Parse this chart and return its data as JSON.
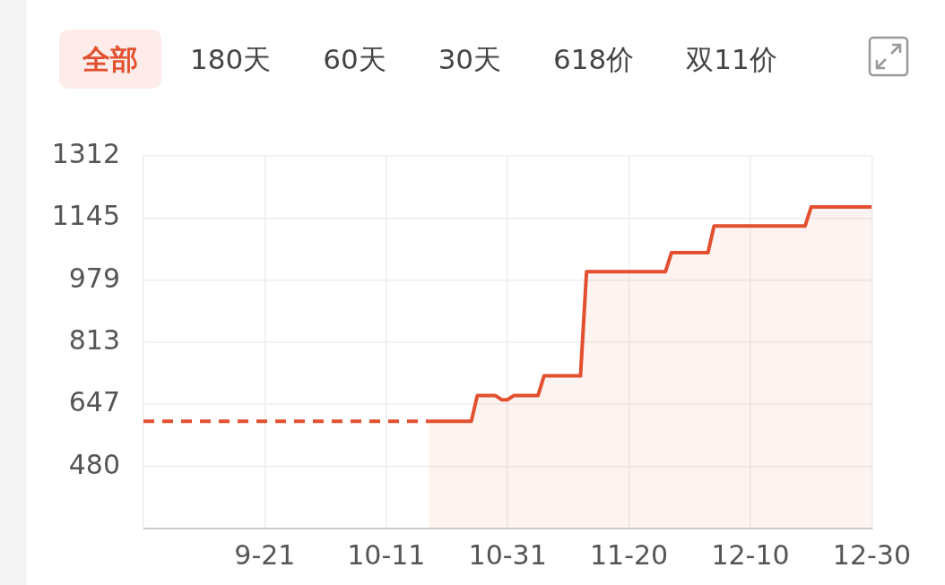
{
  "chart_data": {
    "type": "line",
    "annotations": [
      "全部",
      "180天",
      "60天",
      "30天",
      "618价",
      "双11价"
    ],
    "xlim": [
      "--09-01",
      "--12-30"
    ],
    "xticks": [
      {
        "value": "--09-21",
        "label": "9-21"
      },
      {
        "value": "--10-11",
        "label": "10-11"
      },
      {
        "value": "--10-31",
        "label": "10-31"
      },
      {
        "value": "--11-20",
        "label": "11-20"
      },
      {
        "value": "--12-10",
        "label": "12-10"
      },
      {
        "value": "--12-30",
        "label": "12-30"
      }
    ],
    "ylim": [
      314,
      1312
    ],
    "yticks": [
      480,
      647,
      813,
      979,
      1145,
      1312
    ],
    "grid": true,
    "legend": false,
    "marker": "none",
    "series": [
      {
        "type": "line",
        "line_style": "dashed",
        "color": "#e2502f",
        "x": [
          "--09-01",
          "--10-18"
        ],
        "values": [
          601,
          601
        ]
      },
      {
        "type": "area",
        "line_style": "solid",
        "color": "#e2502f",
        "x": [
          "--10-18",
          "--10-25",
          "--10-26",
          "--10-29",
          "--10-30",
          "--10-31",
          "--11-01",
          "--11-05",
          "--11-06",
          "--11-12",
          "--11-13",
          "--11-26",
          "--11-27",
          "--12-03",
          "--12-04",
          "--12-19",
          "--12-20",
          "--12-30"
        ],
        "values": [
          601,
          601,
          670,
          670,
          659,
          659,
          670,
          670,
          723,
          723,
          1002,
          1002,
          1053,
          1053,
          1124,
          1124,
          1175,
          1175
        ]
      }
    ]
  }
}
